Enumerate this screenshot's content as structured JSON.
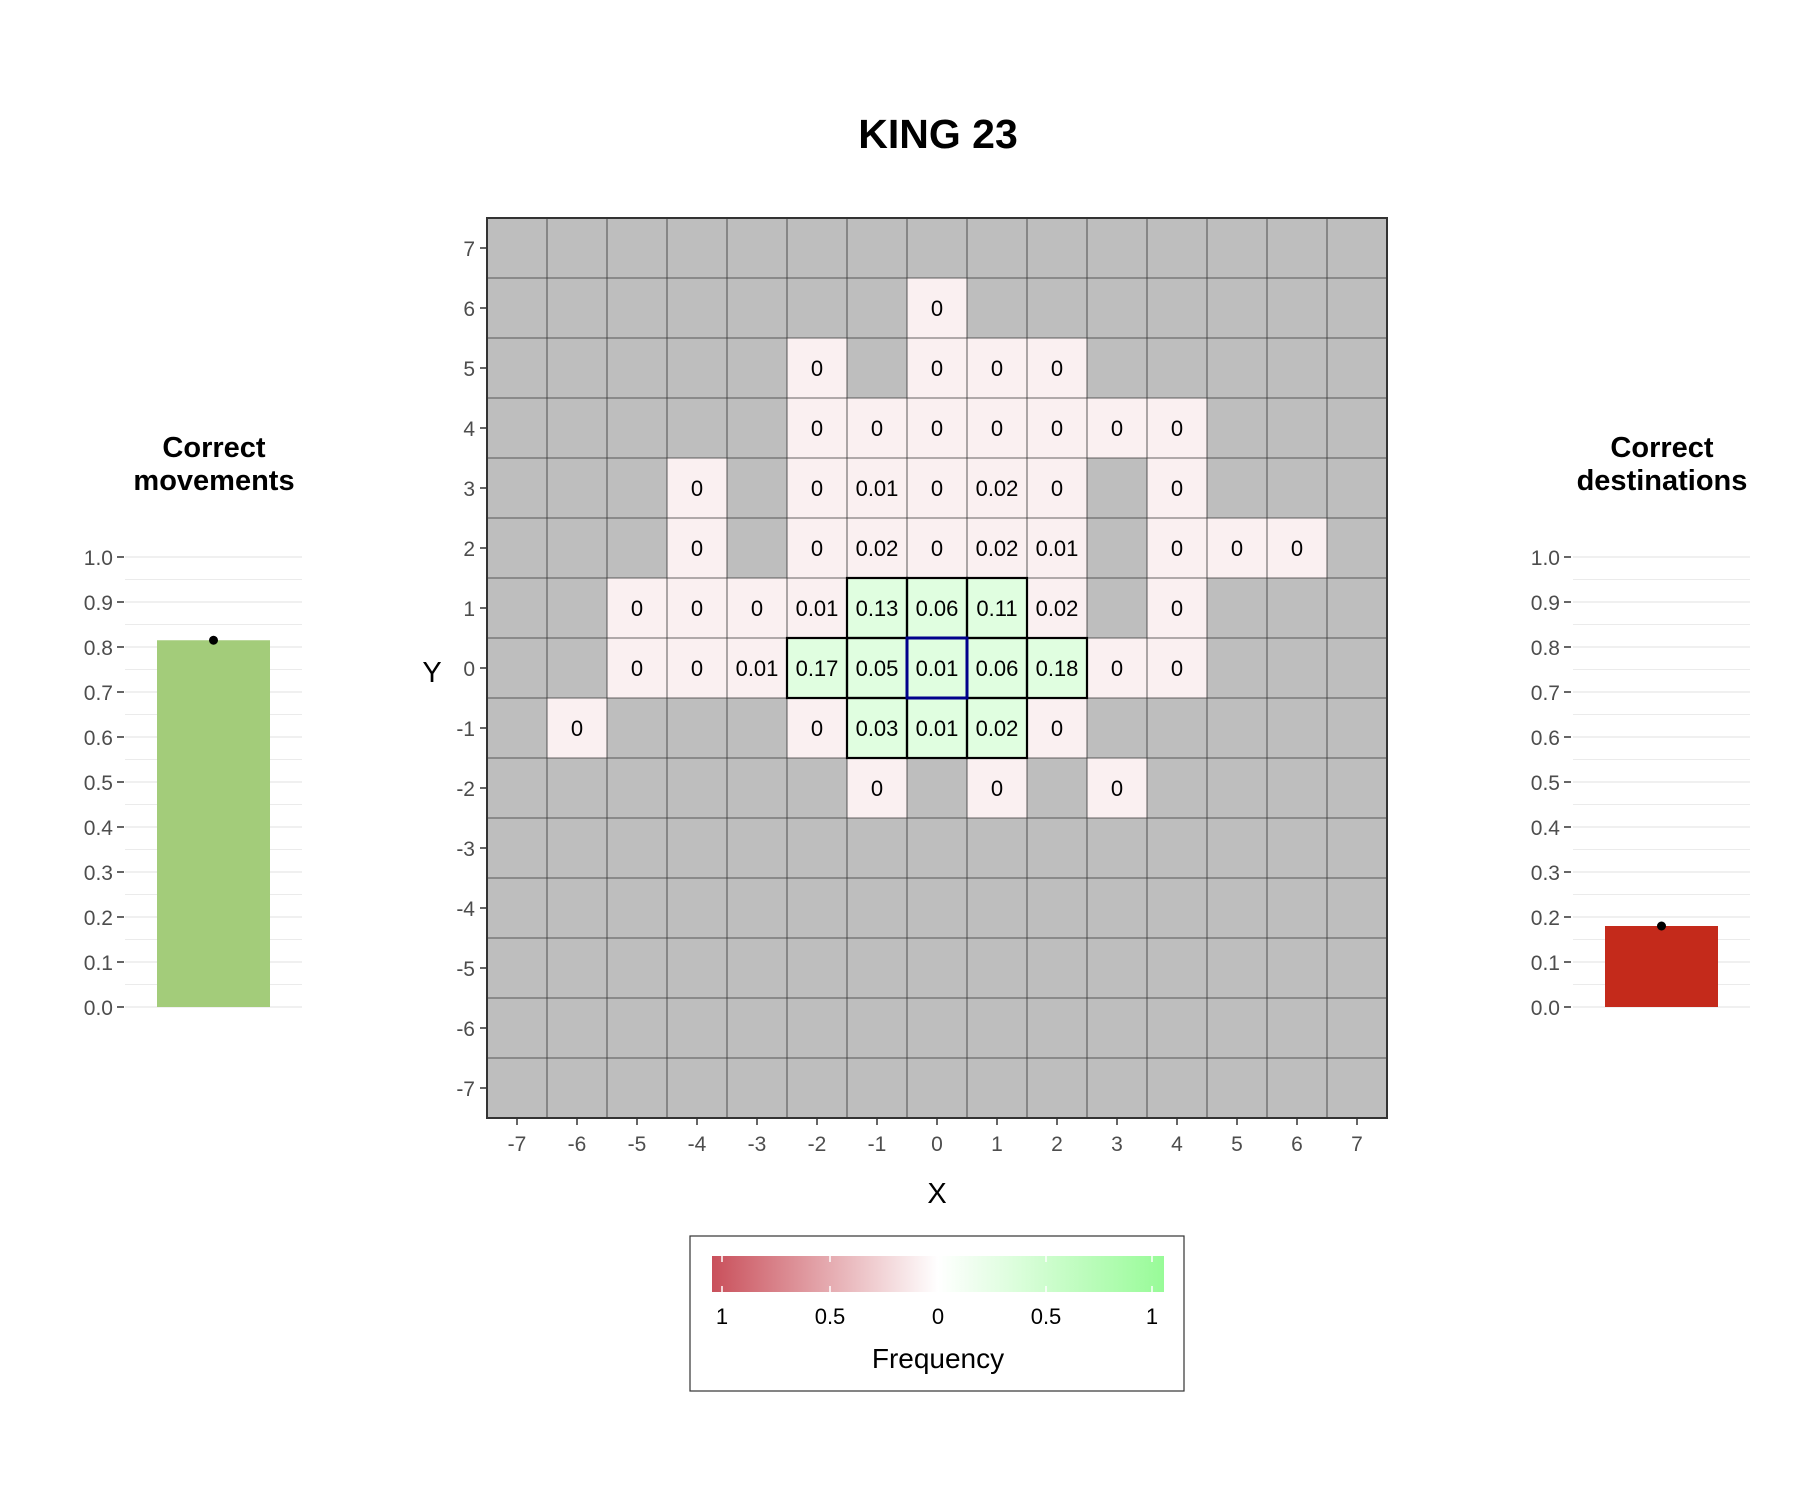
{
  "title": "KING 23",
  "colors": {
    "background": "#ffffff",
    "inactive_cell": "#bebebe",
    "grid_line": "#333333",
    "negative_max": "#c9505b",
    "neutral": "#ffffff",
    "positive_max": "#98fb98",
    "correct_outline": "#000000",
    "origin_outline": "#00008b",
    "bar_good": "#a3cc7a",
    "bar_bad": "#c42a1b",
    "panel_grid": "#ebebeb",
    "axis_text": "#4d4d4d"
  },
  "chart_data": [
    {
      "type": "heatmap",
      "title": "KING 23",
      "xlabel": "X",
      "ylabel": "Y",
      "xlim": [
        -7,
        7
      ],
      "ylim": [
        -7,
        7
      ],
      "x_ticks": [
        "-7",
        "-6",
        "-5",
        "-4",
        "-3",
        "-2",
        "-1",
        "0",
        "1",
        "2",
        "3",
        "4",
        "5",
        "6",
        "7"
      ],
      "y_ticks": [
        "7",
        "6",
        "5",
        "4",
        "3",
        "2",
        "1",
        "0",
        "-1",
        "-2",
        "-3",
        "-4",
        "-5",
        "-6",
        "-7"
      ],
      "origin": [
        0,
        0
      ],
      "cells": [
        {
          "x": 0,
          "y": 6,
          "label": "0",
          "correct": false
        },
        {
          "x": -2,
          "y": 5,
          "label": "0",
          "correct": false
        },
        {
          "x": 0,
          "y": 5,
          "label": "0",
          "correct": false
        },
        {
          "x": 1,
          "y": 5,
          "label": "0",
          "correct": false
        },
        {
          "x": 2,
          "y": 5,
          "label": "0",
          "correct": false
        },
        {
          "x": -2,
          "y": 4,
          "label": "0",
          "correct": false
        },
        {
          "x": -1,
          "y": 4,
          "label": "0",
          "correct": false
        },
        {
          "x": 0,
          "y": 4,
          "label": "0",
          "correct": false
        },
        {
          "x": 1,
          "y": 4,
          "label": "0",
          "correct": false
        },
        {
          "x": 2,
          "y": 4,
          "label": "0",
          "correct": false
        },
        {
          "x": 3,
          "y": 4,
          "label": "0",
          "correct": false
        },
        {
          "x": 4,
          "y": 4,
          "label": "0",
          "correct": false
        },
        {
          "x": -4,
          "y": 3,
          "label": "0",
          "correct": false
        },
        {
          "x": -2,
          "y": 3,
          "label": "0",
          "correct": false
        },
        {
          "x": -1,
          "y": 3,
          "label": "0.01",
          "correct": false
        },
        {
          "x": 0,
          "y": 3,
          "label": "0",
          "correct": false
        },
        {
          "x": 1,
          "y": 3,
          "label": "0.02",
          "correct": false
        },
        {
          "x": 2,
          "y": 3,
          "label": "0",
          "correct": false
        },
        {
          "x": 4,
          "y": 3,
          "label": "0",
          "correct": false
        },
        {
          "x": -4,
          "y": 2,
          "label": "0",
          "correct": false
        },
        {
          "x": -2,
          "y": 2,
          "label": "0",
          "correct": false
        },
        {
          "x": -1,
          "y": 2,
          "label": "0.02",
          "correct": false
        },
        {
          "x": 0,
          "y": 2,
          "label": "0",
          "correct": false
        },
        {
          "x": 1,
          "y": 2,
          "label": "0.02",
          "correct": false
        },
        {
          "x": 2,
          "y": 2,
          "label": "0.01",
          "correct": false
        },
        {
          "x": 4,
          "y": 2,
          "label": "0",
          "correct": false
        },
        {
          "x": 5,
          "y": 2,
          "label": "0",
          "correct": false
        },
        {
          "x": 6,
          "y": 2,
          "label": "0",
          "correct": false
        },
        {
          "x": -5,
          "y": 1,
          "label": "0",
          "correct": false
        },
        {
          "x": -4,
          "y": 1,
          "label": "0",
          "correct": false
        },
        {
          "x": -3,
          "y": 1,
          "label": "0",
          "correct": false
        },
        {
          "x": -2,
          "y": 1,
          "label": "0.01",
          "correct": false
        },
        {
          "x": -1,
          "y": 1,
          "label": "0.13",
          "correct": true
        },
        {
          "x": 0,
          "y": 1,
          "label": "0.06",
          "correct": true
        },
        {
          "x": 1,
          "y": 1,
          "label": "0.11",
          "correct": true
        },
        {
          "x": 2,
          "y": 1,
          "label": "0.02",
          "correct": false
        },
        {
          "x": 4,
          "y": 1,
          "label": "0",
          "correct": false
        },
        {
          "x": -5,
          "y": 0,
          "label": "0",
          "correct": false
        },
        {
          "x": -4,
          "y": 0,
          "label": "0",
          "correct": false
        },
        {
          "x": -3,
          "y": 0,
          "label": "0.01",
          "correct": false
        },
        {
          "x": -2,
          "y": 0,
          "label": "0.17",
          "correct": true
        },
        {
          "x": -1,
          "y": 0,
          "label": "0.05",
          "correct": true
        },
        {
          "x": 0,
          "y": 0,
          "label": "0.01",
          "correct": true
        },
        {
          "x": 1,
          "y": 0,
          "label": "0.06",
          "correct": true
        },
        {
          "x": 2,
          "y": 0,
          "label": "0.18",
          "correct": true
        },
        {
          "x": 3,
          "y": 0,
          "label": "0",
          "correct": false
        },
        {
          "x": 4,
          "y": 0,
          "label": "0",
          "correct": false
        },
        {
          "x": -6,
          "y": -1,
          "label": "0",
          "correct": false
        },
        {
          "x": -2,
          "y": -1,
          "label": "0",
          "correct": false
        },
        {
          "x": -1,
          "y": -1,
          "label": "0.03",
          "correct": true
        },
        {
          "x": 0,
          "y": -1,
          "label": "0.01",
          "correct": true
        },
        {
          "x": 1,
          "y": -1,
          "label": "0.02",
          "correct": true
        },
        {
          "x": 2,
          "y": -1,
          "label": "0",
          "correct": false
        },
        {
          "x": -1,
          "y": -2,
          "label": "0",
          "correct": false
        },
        {
          "x": 1,
          "y": -2,
          "label": "0",
          "correct": false
        },
        {
          "x": 3,
          "y": -2,
          "label": "0",
          "correct": false
        }
      ],
      "legend": {
        "title": "Frequency",
        "labels": [
          "1",
          "0.5",
          "0",
          "0.5",
          "1"
        ],
        "placement": "bottom"
      }
    },
    {
      "type": "bar",
      "title": "Correct\nmovements",
      "title_lines": [
        "Correct",
        "movements"
      ],
      "value": 0.815,
      "error": 0.005,
      "ylim": [
        0,
        1
      ],
      "y_ticks": [
        "0.0",
        "0.1",
        "0.2",
        "0.3",
        "0.4",
        "0.5",
        "0.6",
        "0.7",
        "0.8",
        "0.9",
        "1.0"
      ],
      "color": "#a3cc7a"
    },
    {
      "type": "bar",
      "title": "Correct\ndestinations",
      "title_lines": [
        "Correct",
        "destinations"
      ],
      "value": 0.18,
      "error": 0.004,
      "ylim": [
        0,
        1
      ],
      "y_ticks": [
        "0.0",
        "0.1",
        "0.2",
        "0.3",
        "0.4",
        "0.5",
        "0.6",
        "0.7",
        "0.8",
        "0.9",
        "1.0"
      ],
      "color": "#c42a1b"
    }
  ]
}
